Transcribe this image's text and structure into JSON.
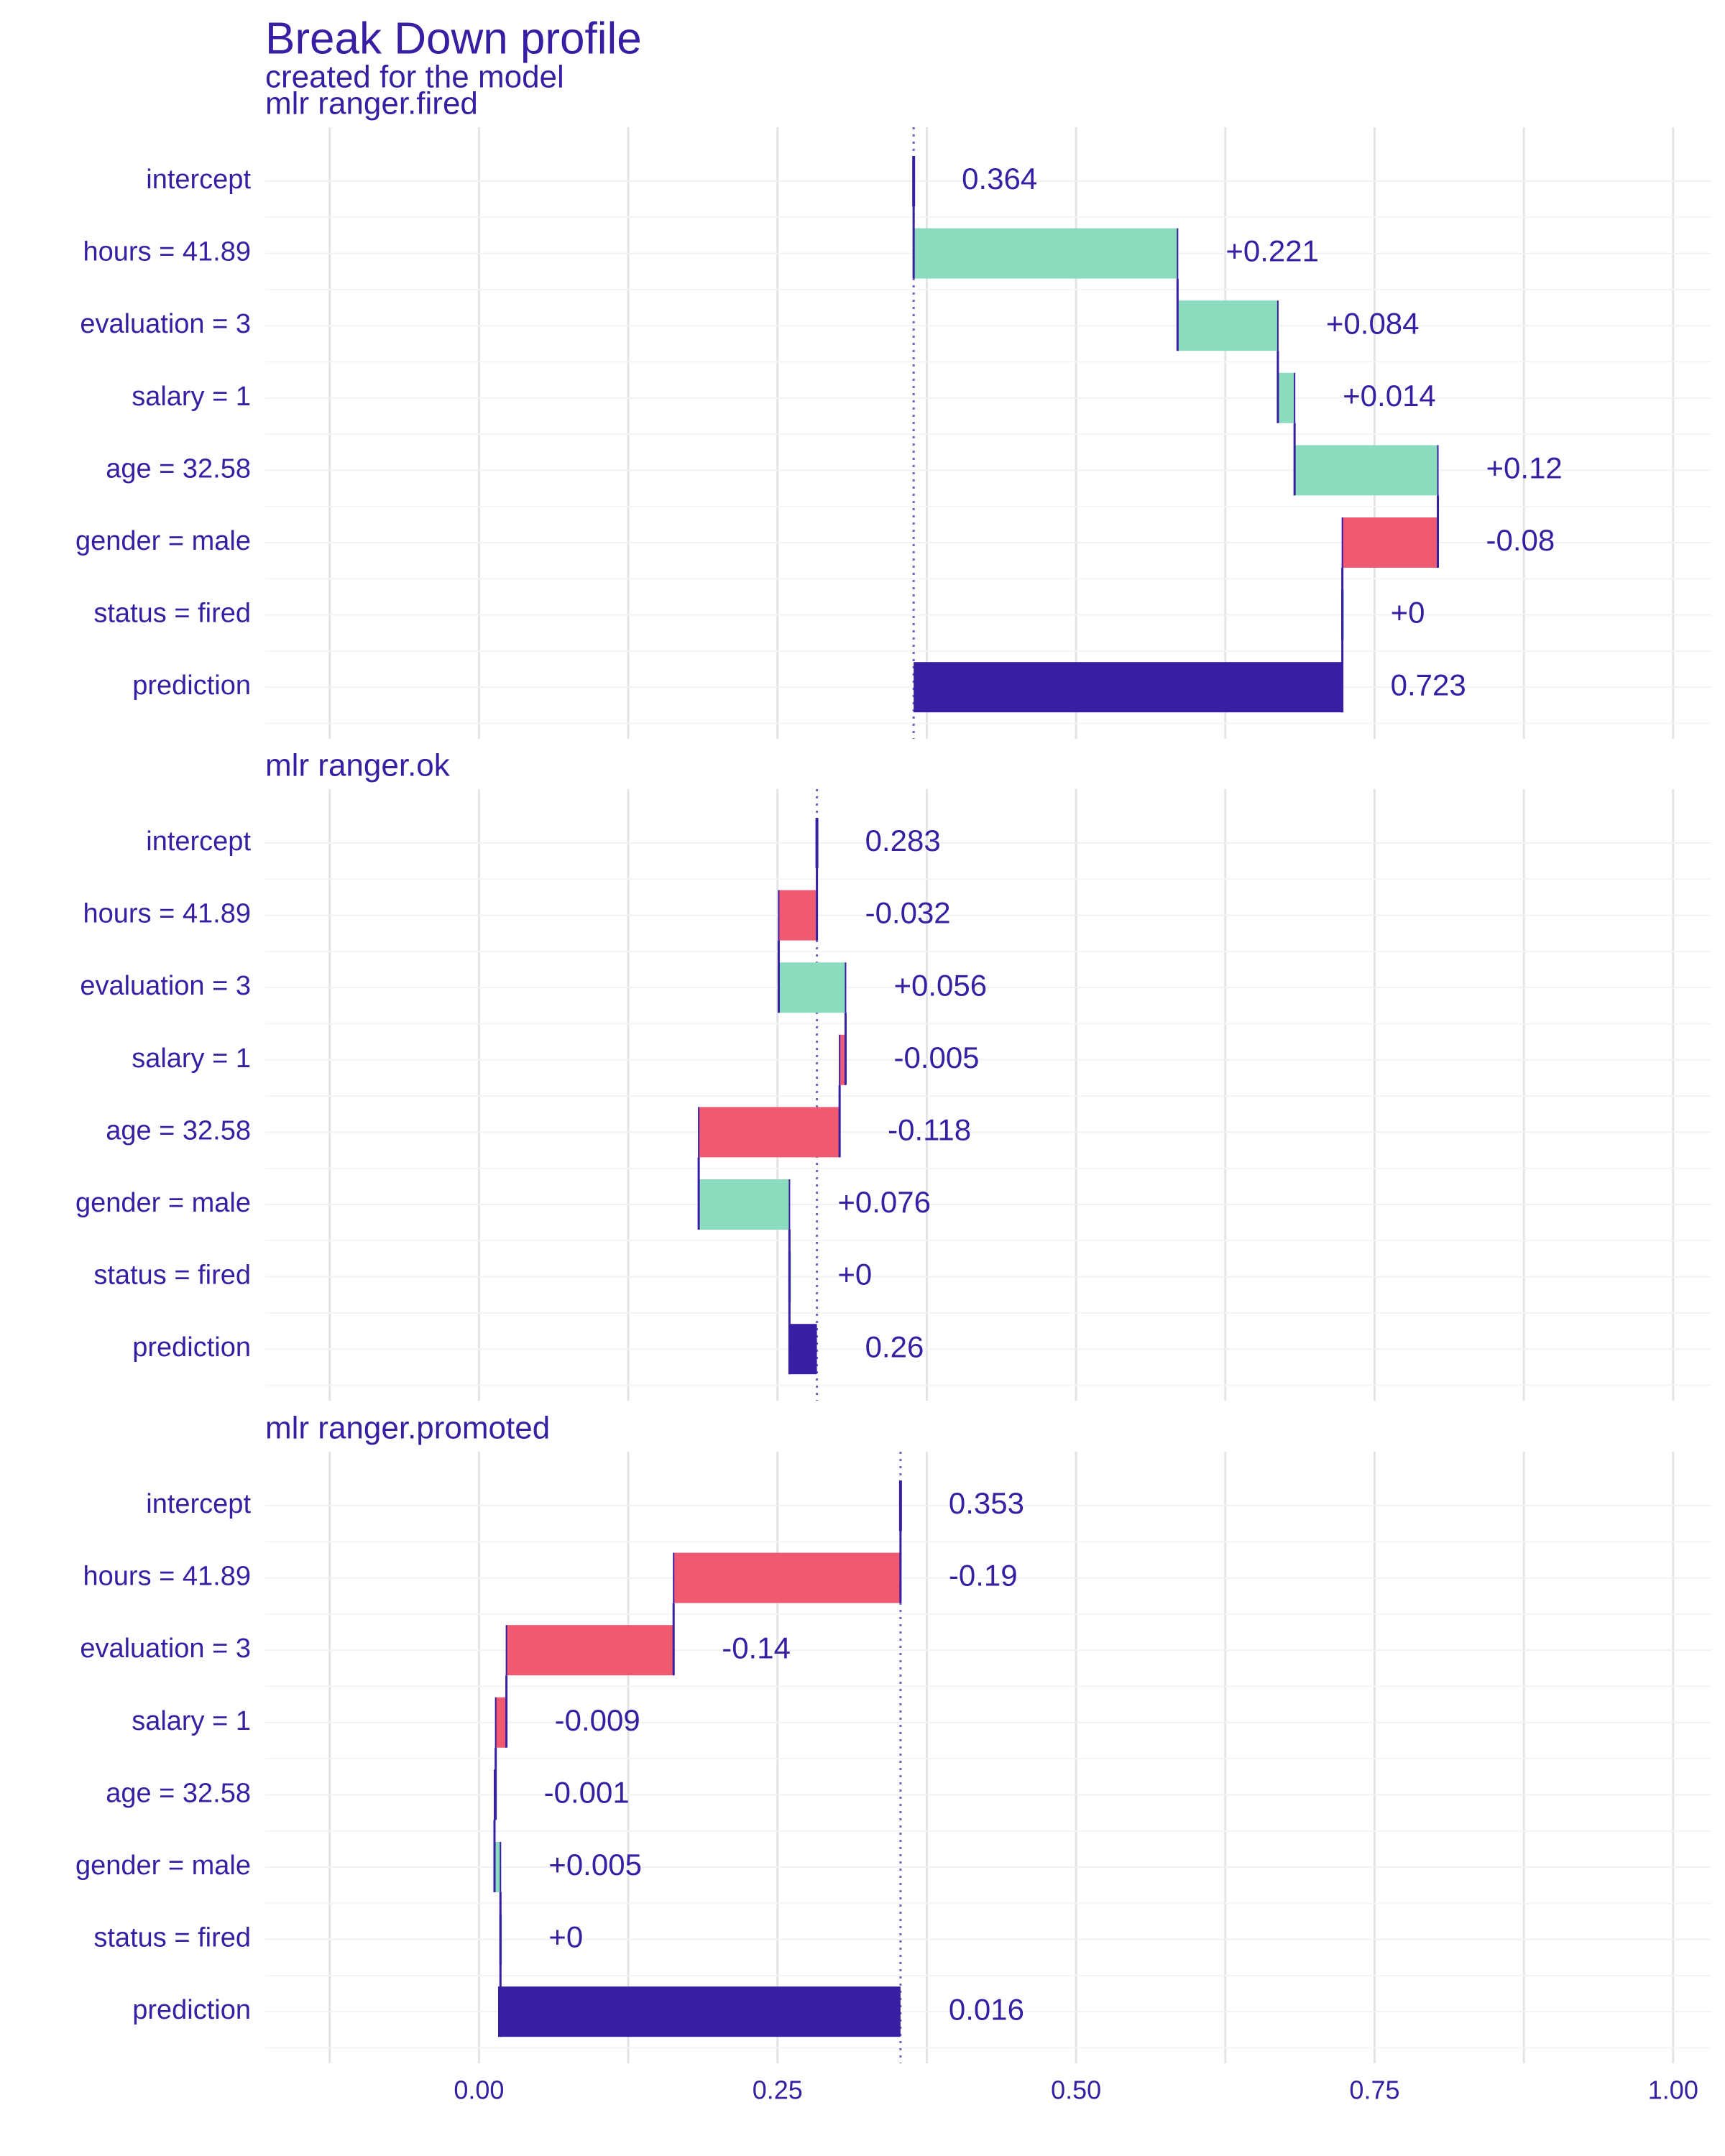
{
  "chart_data": {
    "type": "waterfall",
    "title": "Break Down profile",
    "subtitle": "created for the  model",
    "xlim": [
      -0.179,
      1.032
    ],
    "xticks": [
      {
        "value": 0,
        "label": "0.00"
      },
      {
        "value": 0.25,
        "label": "0.25"
      },
      {
        "value": 0.5,
        "label": "0.50"
      },
      {
        "value": 0.75,
        "label": "0.75"
      },
      {
        "value": 1,
        "label": "1.00"
      }
    ],
    "minor_xticks": [
      -0.125,
      0.125,
      0.375,
      0.625,
      0.875
    ],
    "grid": true,
    "positive_color": "#8bdcbe",
    "negative_color": "#f05a71",
    "prediction_color": "#371ea3",
    "panels": [
      {
        "title": "mlr  ranger.fired",
        "categories": [
          "intercept",
          "hours = 41.89",
          "evaluation = 3",
          "salary = 1",
          "age = 32.58",
          "gender = male",
          "status = fired",
          "prediction"
        ],
        "values": [
          0.364,
          0.221,
          0.084,
          0.014,
          0.12,
          -0.08,
          0,
          0.723
        ],
        "value_labels": [
          "0.364",
          "+0.221",
          "+0.084",
          "+0.014",
          "+0.12",
          "-0.08",
          "+0",
          "0.723"
        ]
      },
      {
        "title": "mlr  ranger.ok",
        "categories": [
          "intercept",
          "hours = 41.89",
          "evaluation = 3",
          "salary = 1",
          "age = 32.58",
          "gender = male",
          "status = fired",
          "prediction"
        ],
        "values": [
          0.283,
          -0.032,
          0.056,
          -0.005,
          -0.118,
          0.076,
          0,
          0.26
        ],
        "value_labels": [
          "0.283",
          "-0.032",
          "+0.056",
          "-0.005",
          "-0.118",
          "+0.076",
          "+0",
          "0.26"
        ]
      },
      {
        "title": "mlr  ranger.promoted",
        "categories": [
          "intercept",
          "hours = 41.89",
          "evaluation = 3",
          "salary = 1",
          "age = 32.58",
          "gender = male",
          "status = fired",
          "prediction"
        ],
        "values": [
          0.353,
          -0.19,
          -0.14,
          -0.009,
          -0.001,
          0.005,
          0,
          0.016
        ],
        "value_labels": [
          "0.353",
          "-0.19",
          "-0.14",
          "-0.009",
          "-0.001",
          "+0.005",
          "+0",
          "0.016"
        ]
      }
    ]
  }
}
